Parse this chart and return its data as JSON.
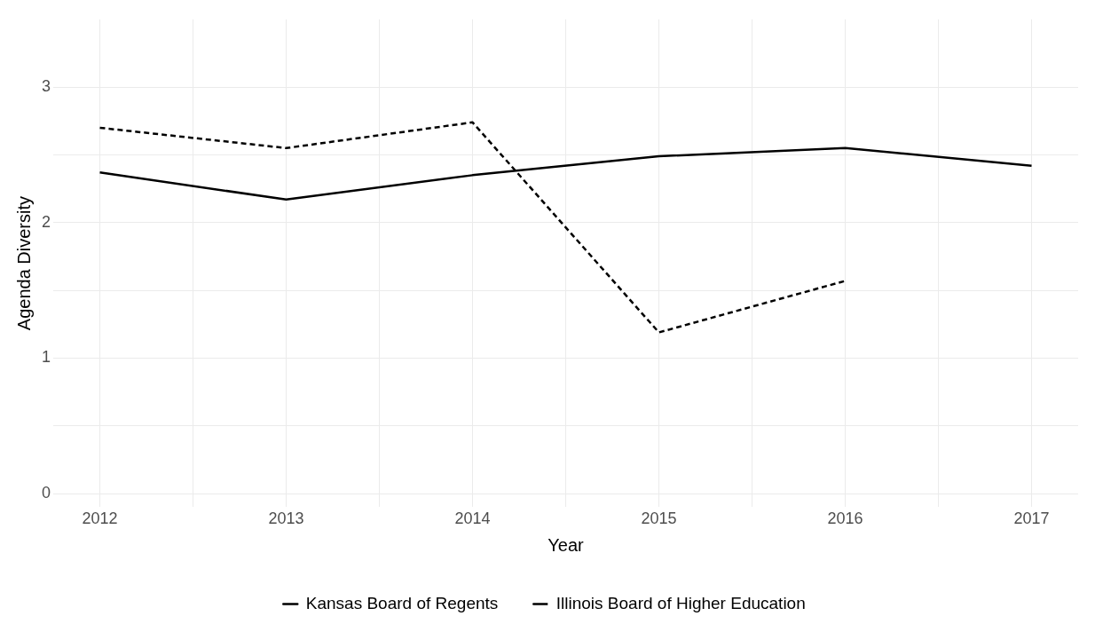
{
  "chart_data": {
    "type": "line",
    "xlabel": "Year",
    "ylabel": "Agenda Diversity",
    "x": [
      2012,
      2013,
      2014,
      2015,
      2016,
      2017
    ],
    "series": [
      {
        "name": "Kansas Board of Regents",
        "color": "#000000",
        "line_style": "solid",
        "values": [
          2.37,
          2.17,
          2.35,
          2.49,
          2.55,
          2.42
        ]
      },
      {
        "name": "Illinois Board of Higher Education",
        "color": "#000000",
        "line_style": "dashed",
        "values": [
          2.7,
          2.55,
          2.74,
          1.19,
          1.57,
          null
        ]
      }
    ],
    "xlim": [
      2011.75,
      2017.25
    ],
    "xticks": [
      2012,
      {
        "value": 2012.5,
        "label": null
      },
      2013,
      {
        "value": 2013.5,
        "label": null
      },
      2014,
      {
        "value": 2014.5,
        "label": null
      },
      2015,
      {
        "value": 2015.5,
        "label": null
      },
      2016,
      {
        "value": 2016.5,
        "label": null
      },
      2017
    ],
    "ylim": [
      -0.1,
      3.5
    ],
    "yticks": [
      0,
      {
        "value": 0.5,
        "label": null
      },
      1,
      {
        "value": 1.5,
        "label": null
      },
      2,
      {
        "value": 2.5,
        "label": null
      },
      3
    ],
    "grid": true,
    "legend": "bottom",
    "marker": "none"
  }
}
